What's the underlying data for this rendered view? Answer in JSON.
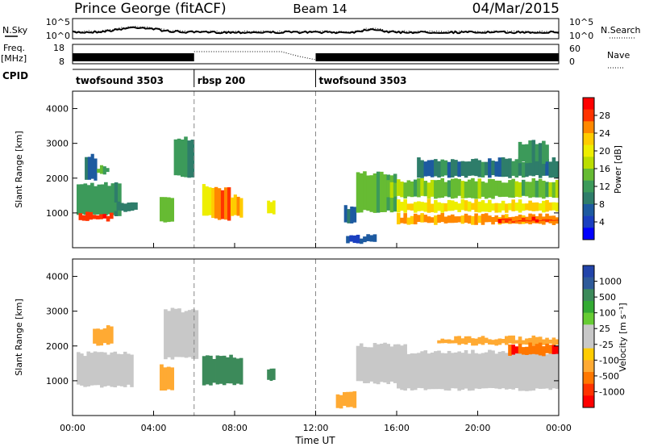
{
  "header": {
    "station": "Prince George (fitACF)",
    "beam": "Beam 14",
    "date": "04/Mar/2015"
  },
  "strips": {
    "sky": {
      "label": "N.Sky",
      "label_right": "N.Search",
      "left_ticks": [
        "10^5",
        "10^0"
      ],
      "right_ticks": [
        "10^5",
        "10^0"
      ]
    },
    "freq": {
      "label_line1": "Freq.",
      "label_line2": "[MHz]",
      "label_right": "Nave",
      "left_ticks": [
        "18",
        "8"
      ],
      "right_ticks": [
        "60",
        "0"
      ]
    },
    "cpid": {
      "label": "CPID",
      "segments": [
        {
          "name": "twofsound 3503",
          "start_h": 0,
          "end_h": 6
        },
        {
          "name": "rbsp 200",
          "start_h": 6,
          "end_h": 12
        },
        {
          "name": "twofsound 3503",
          "start_h": 12,
          "end_h": 24
        }
      ]
    }
  },
  "chart_data": [
    {
      "type": "heatmap",
      "title": "",
      "xlabel": "Time UT",
      "ylabel": "Slant Range [km]",
      "xlim": [
        0,
        24
      ],
      "ylim": [
        0,
        4500
      ],
      "x_ticks": [
        "00:00",
        "04:00",
        "08:00",
        "12:00",
        "16:00",
        "20:00",
        "00:00"
      ],
      "y_ticks": [
        "1000",
        "2000",
        "3000",
        "4000"
      ],
      "colorbar": {
        "label": "Power [dB]",
        "ticks": [
          "28",
          "24",
          "20",
          "16",
          "12",
          "8",
          "4"
        ],
        "colors": [
          "#ff0000",
          "#ff3300",
          "#ff8800",
          "#ffcc00",
          "#eeee00",
          "#bbdd00",
          "#66bb33",
          "#3c9a5a",
          "#2e7d6a",
          "#1d5aa0",
          "#1a3fc0",
          "#0000ff"
        ]
      },
      "patches": [
        {
          "t": [
            0.2,
            2.4
          ],
          "r": [
            900,
            1900
          ],
          "p": 11
        },
        {
          "t": [
            0.3,
            2.0
          ],
          "r": [
            750,
            1050
          ],
          "p": 28
        },
        {
          "t": [
            2.0,
            3.2
          ],
          "r": [
            1000,
            1400
          ],
          "p": 9
        },
        {
          "t": [
            0.6,
            1.2
          ],
          "r": [
            1900,
            2700
          ],
          "p": 6
        },
        {
          "t": [
            1.2,
            1.8
          ],
          "r": [
            2100,
            2400
          ],
          "p": 12
        },
        {
          "t": [
            4.3,
            5.0
          ],
          "r": [
            700,
            1500
          ],
          "p": 14
        },
        {
          "t": [
            5.0,
            6.0
          ],
          "r": [
            2000,
            3200
          ],
          "p": 10
        },
        {
          "t": [
            6.4,
            7.0
          ],
          "r": [
            850,
            1850
          ],
          "p": 20
        },
        {
          "t": [
            7.0,
            7.8
          ],
          "r": [
            750,
            1750
          ],
          "p": 26
        },
        {
          "t": [
            7.8,
            8.4
          ],
          "r": [
            850,
            1550
          ],
          "p": 22
        },
        {
          "t": [
            9.6,
            10.0
          ],
          "r": [
            950,
            1450
          ],
          "p": 20
        },
        {
          "t": [
            13.4,
            14.0
          ],
          "r": [
            650,
            1250
          ],
          "p": 8
        },
        {
          "t": [
            14.0,
            16.0
          ],
          "r": [
            1000,
            2200
          ],
          "p": 13
        },
        {
          "t": [
            15.5,
            24.0
          ],
          "r": [
            1400,
            2000
          ],
          "p": 14
        },
        {
          "t": [
            16.0,
            24.0
          ],
          "r": [
            1000,
            1400
          ],
          "p": 20
        },
        {
          "t": [
            16.0,
            24.0
          ],
          "r": [
            650,
            1000
          ],
          "p": 24
        },
        {
          "t": [
            21.0,
            24.0
          ],
          "r": [
            700,
            900
          ],
          "p": 28
        },
        {
          "t": [
            17.0,
            24.0
          ],
          "r": [
            2000,
            2600
          ],
          "p": 8
        },
        {
          "t": [
            13.5,
            15.0
          ],
          "r": [
            100,
            400
          ],
          "p": 4
        },
        {
          "t": [
            22.0,
            23.5
          ],
          "r": [
            2400,
            3100
          ],
          "p": 10
        }
      ]
    },
    {
      "type": "heatmap",
      "title": "",
      "xlabel": "Time UT",
      "ylabel": "Slant Range [km]",
      "xlim": [
        0,
        24
      ],
      "ylim": [
        0,
        4500
      ],
      "x_ticks": [
        "00:00",
        "04:00",
        "08:00",
        "12:00",
        "16:00",
        "20:00",
        "00:00"
      ],
      "y_ticks": [
        "1000",
        "2000",
        "3000",
        "4000"
      ],
      "colorbar": {
        "label": "Velocity [m s⁻¹]",
        "ticks": [
          "1000",
          "500",
          "100",
          "25",
          "-25",
          "-100",
          "-500",
          "-1000"
        ],
        "colors": [
          "#2244aa",
          "#2e5a99",
          "#3c8a5a",
          "#33aa33",
          "#66cc33",
          "#c8c8c8",
          "#c8c8c8",
          "#ffcc00",
          "#ffaa33",
          "#ff7700",
          "#ff3300",
          "#ff0000"
        ]
      },
      "patches": [
        {
          "t": [
            0.2,
            3.0
          ],
          "r": [
            800,
            1850
          ],
          "v": 0
        },
        {
          "t": [
            4.3,
            5.0
          ],
          "r": [
            700,
            1500
          ],
          "v": -250
        },
        {
          "t": [
            4.5,
            6.2
          ],
          "r": [
            1600,
            3100
          ],
          "v": 0
        },
        {
          "t": [
            6.4,
            8.4
          ],
          "r": [
            850,
            1750
          ],
          "v": 250
        },
        {
          "t": [
            9.6,
            10.0
          ],
          "r": [
            950,
            1450
          ],
          "v": 250
        },
        {
          "t": [
            14.0,
            16.5
          ],
          "r": [
            900,
            2100
          ],
          "v": 0
        },
        {
          "t": [
            16.0,
            24.0
          ],
          "r": [
            700,
            1900
          ],
          "v": 0
        },
        {
          "t": [
            18.0,
            24.0
          ],
          "r": [
            2000,
            2300
          ],
          "v": -250
        },
        {
          "t": [
            21.5,
            24.0
          ],
          "r": [
            1700,
            2100
          ],
          "v": -600
        },
        {
          "t": [
            1.0,
            2.0
          ],
          "r": [
            2000,
            2600
          ],
          "v": -150
        },
        {
          "t": [
            13.0,
            14.0
          ],
          "r": [
            200,
            700
          ],
          "v": -200
        }
      ]
    }
  ]
}
